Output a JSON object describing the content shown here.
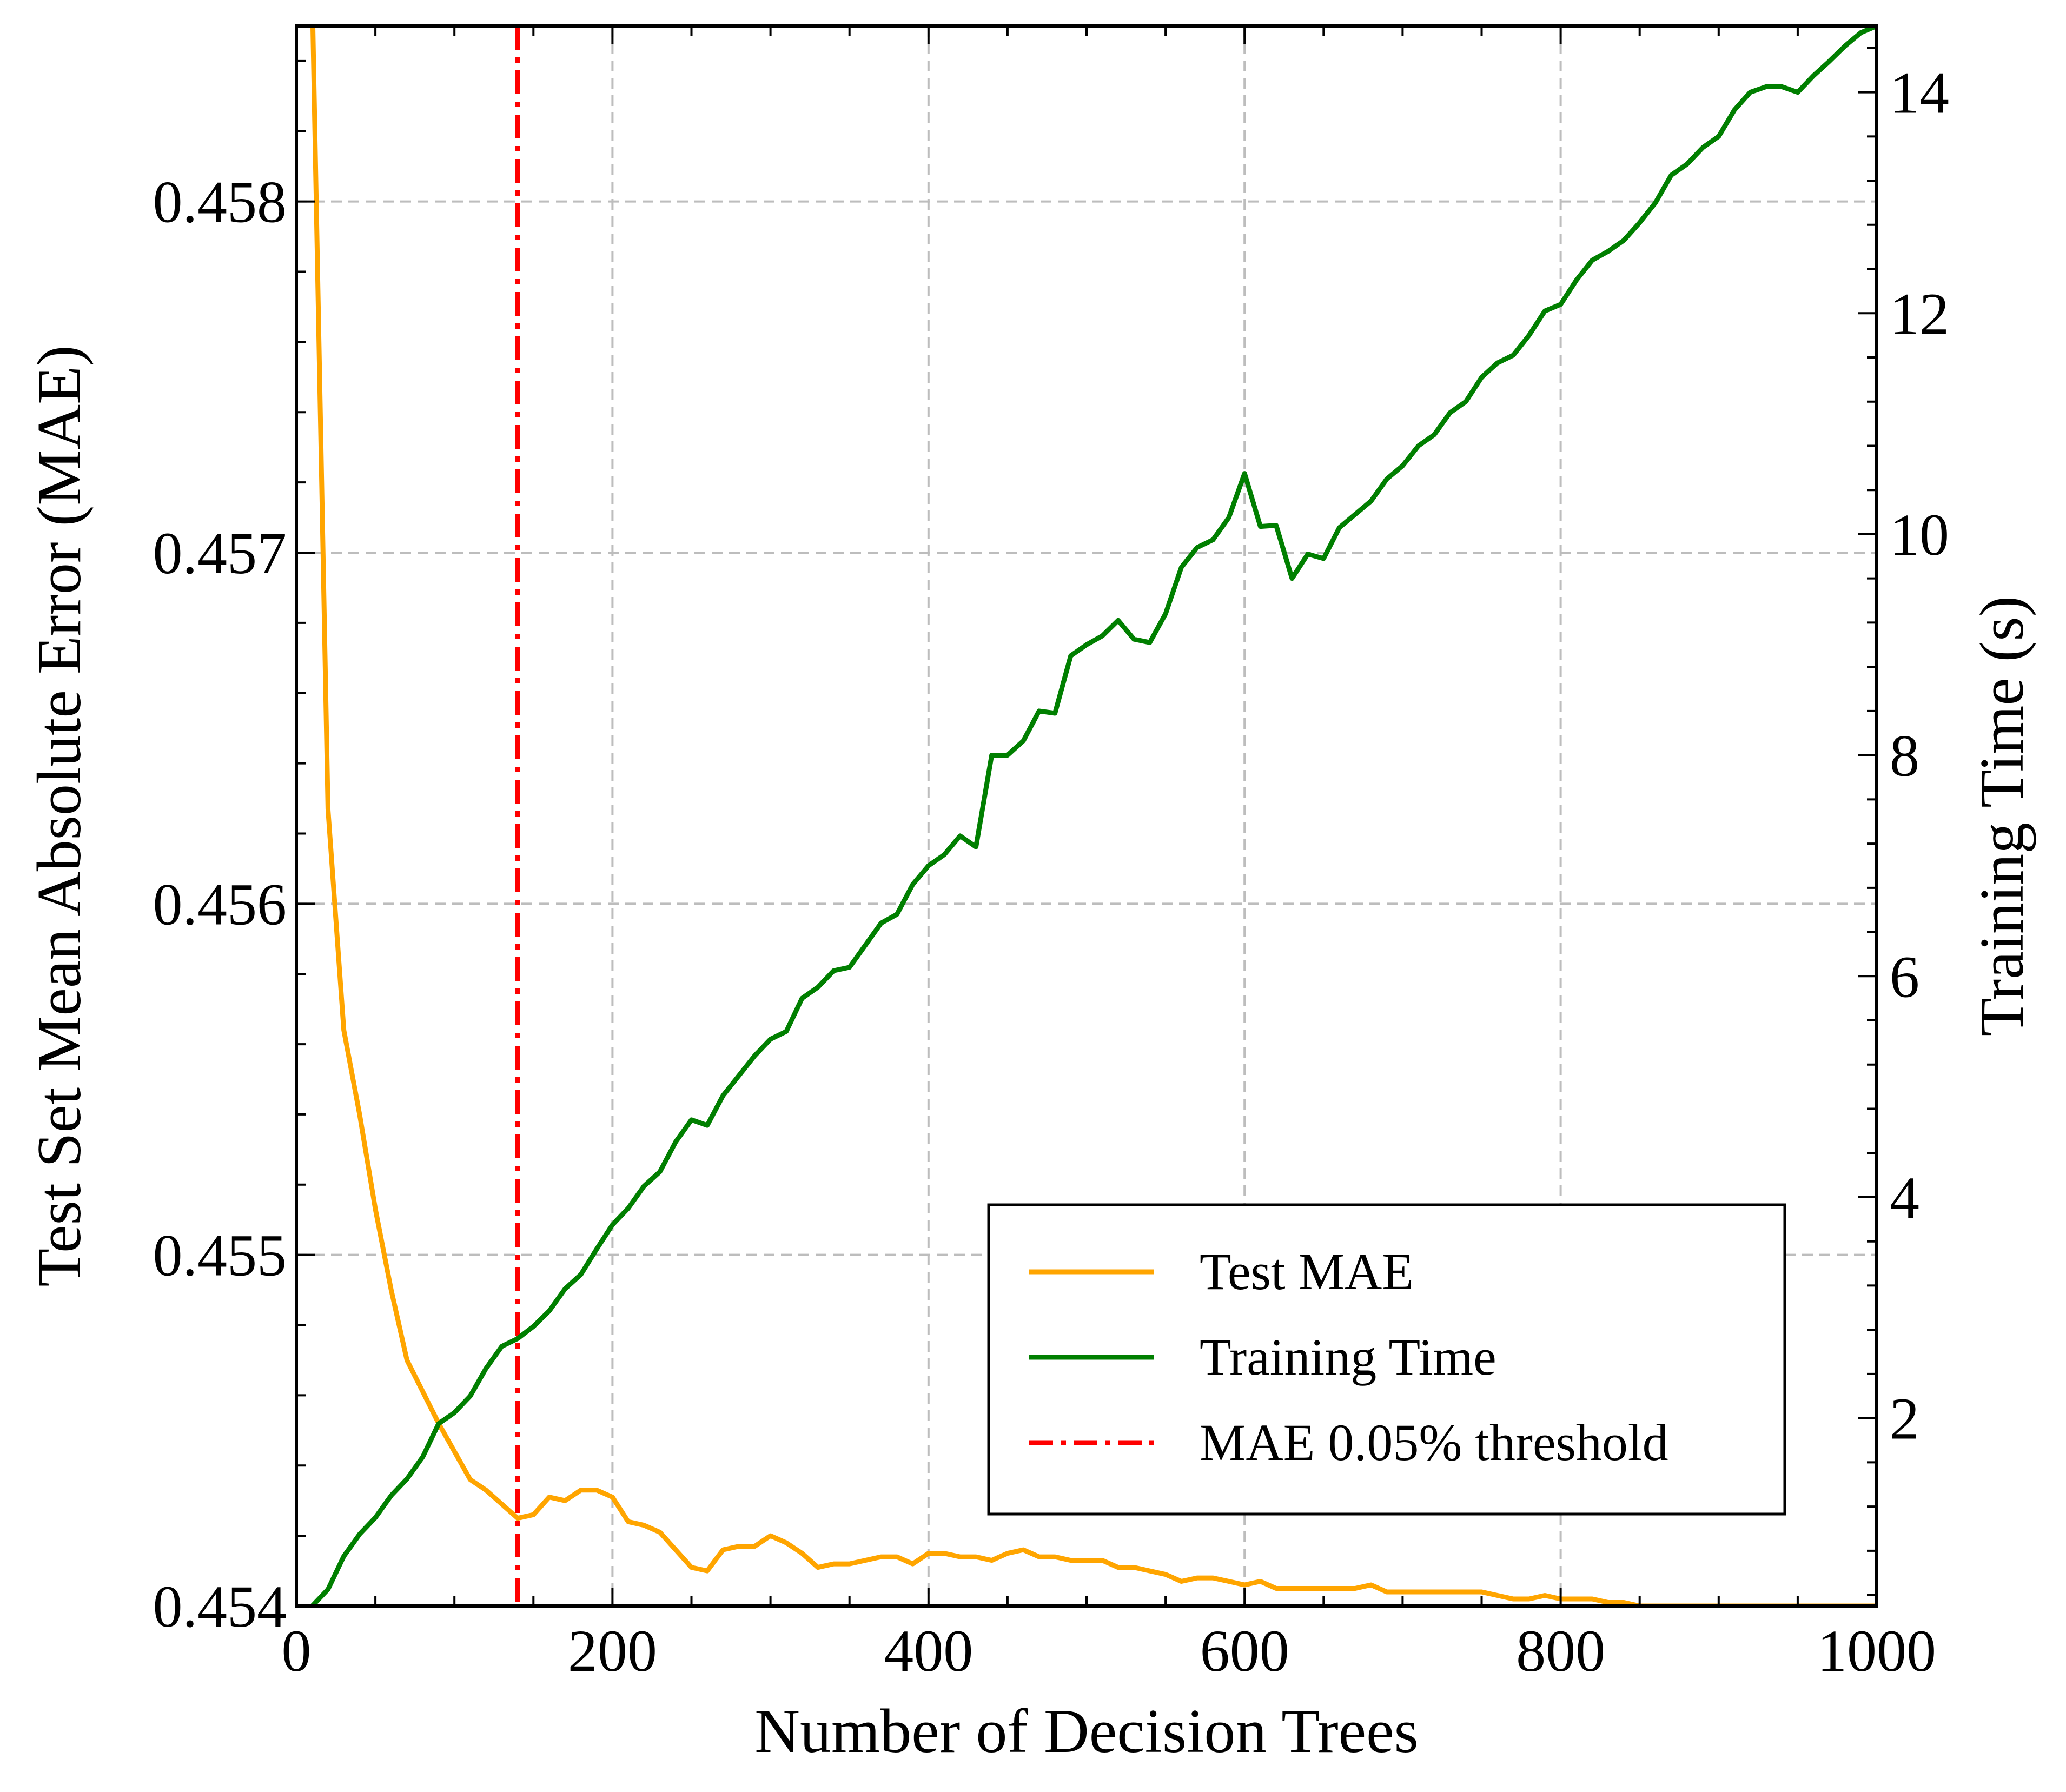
{
  "chart_data": {
    "type": "line",
    "xlabel": "Number of Decision Trees",
    "ylabel": "Test Set Mean Absolute Error (MAE)",
    "y2label": "Training Time (s)",
    "xlim": [
      0,
      1000
    ],
    "ylim": [
      0.454,
      0.4585
    ],
    "y2lim": [
      0.3,
      14.6
    ],
    "xticks": [
      0,
      200,
      400,
      600,
      800,
      1000
    ],
    "yticks": [
      0.454,
      0.455,
      0.456,
      0.457,
      0.458
    ],
    "y2ticks": [
      2,
      4,
      6,
      8,
      10,
      12,
      14
    ],
    "xtick_labels": [
      "0",
      "200",
      "400",
      "600",
      "800",
      "1000"
    ],
    "ytick_labels": [
      "0.454",
      "0.455",
      "0.456",
      "0.457",
      "0.458"
    ],
    "y2tick_labels": [
      "2",
      "4",
      "6",
      "8",
      "10",
      "12",
      "14"
    ],
    "grid": true,
    "legend_position": "lower-right",
    "threshold": {
      "name": "MAE 0.05% threshold",
      "x": 140,
      "color": "#ff0000",
      "style": "dash-dot"
    },
    "series": [
      {
        "name": "Test MAE",
        "axis": "left",
        "color": "#ffa500",
        "x": [
          10,
          20,
          30,
          40,
          50,
          60,
          70,
          80,
          90,
          100,
          110,
          120,
          130,
          140,
          150,
          160,
          170,
          180,
          190,
          200,
          210,
          220,
          230,
          240,
          250,
          260,
          270,
          280,
          290,
          300,
          310,
          320,
          330,
          340,
          350,
          360,
          370,
          380,
          390,
          400,
          410,
          420,
          430,
          440,
          450,
          460,
          470,
          480,
          490,
          500,
          510,
          520,
          530,
          540,
          550,
          560,
          570,
          580,
          590,
          600,
          610,
          620,
          630,
          640,
          650,
          660,
          670,
          680,
          690,
          700,
          710,
          720,
          730,
          740,
          750,
          760,
          770,
          780,
          790,
          800,
          810,
          820,
          830,
          840,
          850,
          860,
          870,
          880,
          890,
          900,
          910,
          920,
          930,
          940,
          950,
          960,
          970,
          980,
          990,
          1000
        ],
        "values": [
          0.4586,
          0.45627,
          0.45564,
          0.4554,
          0.45513,
          0.4549,
          0.4547,
          0.45461,
          0.45452,
          0.45444,
          0.45436,
          0.45433,
          0.45429,
          0.45425,
          0.45426,
          0.45431,
          0.4543,
          0.45433,
          0.45433,
          0.45431,
          0.45424,
          0.45423,
          0.45421,
          0.45416,
          0.45411,
          0.4541,
          0.45416,
          0.45417,
          0.45417,
          0.4542,
          0.45418,
          0.45415,
          0.45411,
          0.45412,
          0.45412,
          0.45413,
          0.45414,
          0.45414,
          0.45412,
          0.45415,
          0.45415,
          0.45414,
          0.45414,
          0.45413,
          0.45415,
          0.45416,
          0.45414,
          0.45414,
          0.45413,
          0.45413,
          0.45413,
          0.45411,
          0.45411,
          0.4541,
          0.45409,
          0.45407,
          0.45408,
          0.45408,
          0.45407,
          0.45406,
          0.45407,
          0.45405,
          0.45405,
          0.45405,
          0.45405,
          0.45405,
          0.45405,
          0.45406,
          0.45404,
          0.45404,
          0.45404,
          0.45404,
          0.45404,
          0.45404,
          0.45404,
          0.45403,
          0.45402,
          0.45402,
          0.45403,
          0.45402,
          0.45402,
          0.45402,
          0.45401,
          0.45401,
          0.454,
          0.454,
          0.454,
          0.454,
          0.454,
          0.454,
          0.454,
          0.454,
          0.454,
          0.454,
          0.454,
          0.454,
          0.454,
          0.454,
          0.454,
          0.454
        ]
      },
      {
        "name": "Training Time",
        "axis": "right",
        "color": "#007f00",
        "x": [
          10,
          20,
          30,
          40,
          50,
          60,
          70,
          80,
          90,
          100,
          110,
          120,
          130,
          140,
          150,
          160,
          170,
          180,
          190,
          200,
          210,
          220,
          230,
          240,
          250,
          260,
          270,
          280,
          290,
          300,
          310,
          320,
          330,
          340,
          350,
          360,
          370,
          380,
          390,
          400,
          410,
          420,
          430,
          440,
          450,
          460,
          470,
          480,
          490,
          500,
          510,
          520,
          530,
          540,
          550,
          560,
          570,
          580,
          590,
          600,
          610,
          620,
          630,
          640,
          650,
          660,
          670,
          680,
          690,
          700,
          710,
          720,
          730,
          740,
          750,
          760,
          770,
          780,
          790,
          800,
          810,
          820,
          830,
          840,
          850,
          860,
          870,
          880,
          890,
          900,
          910,
          920,
          930,
          940,
          950,
          960,
          970,
          980,
          990,
          1000
        ],
        "values": [
          0.3,
          0.45,
          0.75,
          0.95,
          1.1,
          1.3,
          1.45,
          1.65,
          1.95,
          2.05,
          2.2,
          2.45,
          2.65,
          2.72,
          2.83,
          2.97,
          3.17,
          3.3,
          3.53,
          3.75,
          3.9,
          4.1,
          4.23,
          4.5,
          4.7,
          4.65,
          4.92,
          5.1,
          5.28,
          5.43,
          5.5,
          5.8,
          5.9,
          6.05,
          6.08,
          6.28,
          6.48,
          6.56,
          6.83,
          7.0,
          7.1,
          7.27,
          7.17,
          8.0,
          8.0,
          8.13,
          8.4,
          8.38,
          8.9,
          9.0,
          9.08,
          9.22,
          9.05,
          9.02,
          9.28,
          9.7,
          9.88,
          9.95,
          10.15,
          10.55,
          10.07,
          10.08,
          9.6,
          9.82,
          9.78,
          10.06,
          10.18,
          10.3,
          10.5,
          10.62,
          10.8,
          10.9,
          11.1,
          11.2,
          11.42,
          11.55,
          11.62,
          11.8,
          12.02,
          12.08,
          12.3,
          12.48,
          12.56,
          12.66,
          12.82,
          13.0,
          13.25,
          13.35,
          13.5,
          13.6,
          13.84,
          14.0,
          14.05,
          14.05,
          14.0,
          14.15,
          14.28,
          14.42,
          14.54,
          14.6
        ]
      }
    ],
    "legend": [
      {
        "label": "Test MAE",
        "color": "#ffa500",
        "style": "solid"
      },
      {
        "label": "Training Time",
        "color": "#007f00",
        "style": "solid"
      },
      {
        "label": "MAE 0.05% threshold",
        "color": "#ff0000",
        "style": "dash-dot"
      }
    ]
  }
}
